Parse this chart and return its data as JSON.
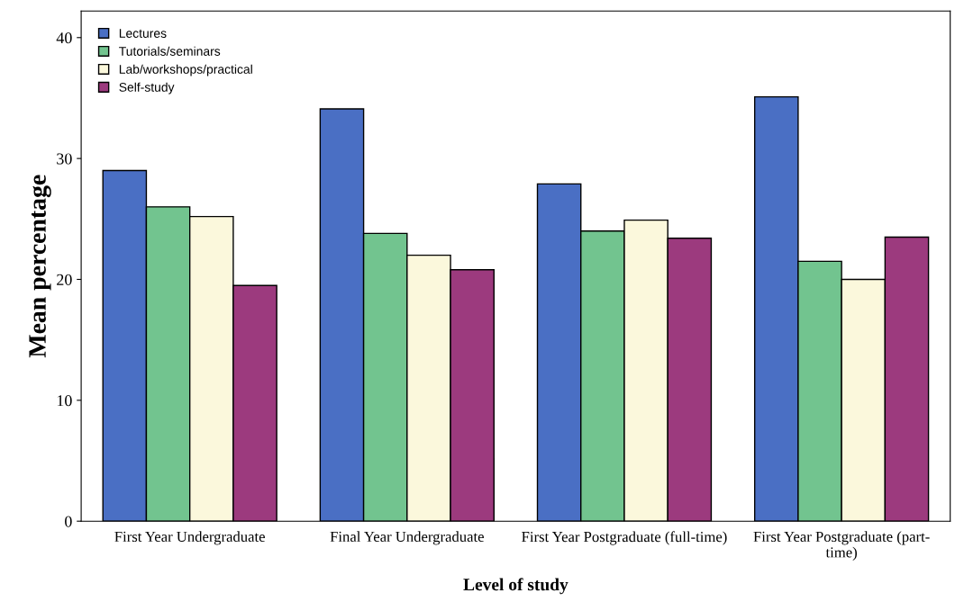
{
  "chart_data": {
    "type": "bar",
    "xlabel": "Level of study",
    "ylabel": "Mean percentage",
    "categories": [
      "First Year Undergraduate",
      "Final Year Undergraduate",
      "First Year Postgraduate (full-time)",
      "First Year Postgraduate (part-\ntime)"
    ],
    "series": [
      {
        "name": "Lectures",
        "color": "#4a6fc4",
        "values": [
          29.0,
          34.1,
          27.9,
          35.1
        ]
      },
      {
        "name": "Tutorials/seminars",
        "color": "#72c48f",
        "values": [
          26.0,
          23.8,
          24.0,
          21.5
        ]
      },
      {
        "name": "Lab/workshops/practical",
        "color": "#fbf8dc",
        "values": [
          25.2,
          22.0,
          24.9,
          20.0
        ]
      },
      {
        "name": "Self-study",
        "color": "#9c3a7e",
        "values": [
          19.5,
          20.8,
          23.4,
          23.5
        ]
      }
    ],
    "ylim": [
      0,
      42.2
    ],
    "yticks": [
      0,
      10,
      20,
      30,
      40
    ],
    "grid": false,
    "legend": "top left"
  }
}
